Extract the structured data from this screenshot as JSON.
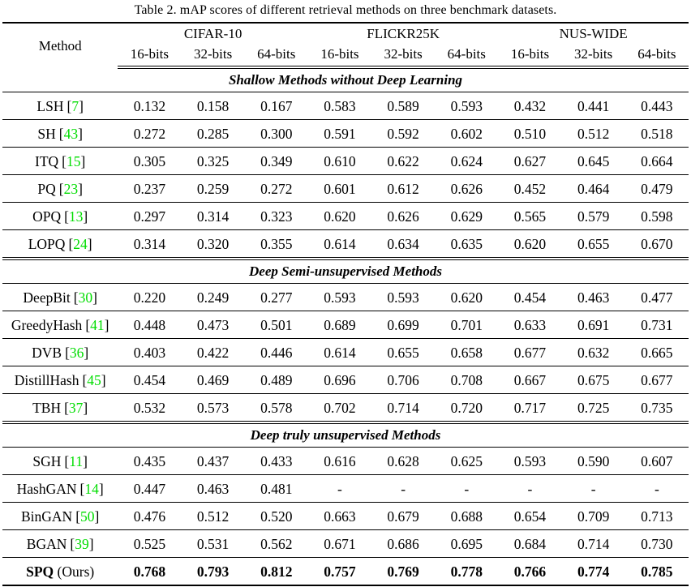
{
  "title": "Table 2. mAP scores of different retrieval methods on three benchmark datasets.",
  "colors": {
    "citation_green": "#00dd00",
    "text": "#000000",
    "background": "#ffffff"
  },
  "table": {
    "method_header": "Method",
    "datasets": [
      "CIFAR-10",
      "FLICKR25K",
      "NUS-WIDE"
    ],
    "bit_labels": [
      "16-bits",
      "32-bits",
      "64-bits"
    ],
    "citation_open": "[",
    "citation_close": "]",
    "sections": [
      {
        "label": "Shallow Methods without Deep Learning",
        "rows": [
          {
            "method": "LSH",
            "citation": "7",
            "values": [
              "0.132",
              "0.158",
              "0.167",
              "0.583",
              "0.589",
              "0.593",
              "0.432",
              "0.441",
              "0.443"
            ]
          },
          {
            "method": "SH",
            "citation": "43",
            "values": [
              "0.272",
              "0.285",
              "0.300",
              "0.591",
              "0.592",
              "0.602",
              "0.510",
              "0.512",
              "0.518"
            ]
          },
          {
            "method": "ITQ",
            "citation": "15",
            "values": [
              "0.305",
              "0.325",
              "0.349",
              "0.610",
              "0.622",
              "0.624",
              "0.627",
              "0.645",
              "0.664"
            ]
          },
          {
            "method": "PQ",
            "citation": "23",
            "values": [
              "0.237",
              "0.259",
              "0.272",
              "0.601",
              "0.612",
              "0.626",
              "0.452",
              "0.464",
              "0.479"
            ]
          },
          {
            "method": "OPQ",
            "citation": "13",
            "values": [
              "0.297",
              "0.314",
              "0.323",
              "0.620",
              "0.626",
              "0.629",
              "0.565",
              "0.579",
              "0.598"
            ]
          },
          {
            "method": "LOPQ",
            "citation": "24",
            "values": [
              "0.314",
              "0.320",
              "0.355",
              "0.614",
              "0.634",
              "0.635",
              "0.620",
              "0.655",
              "0.670"
            ]
          }
        ]
      },
      {
        "label": "Deep Semi-unsupervised Methods",
        "rows": [
          {
            "method": "DeepBit",
            "citation": "30",
            "values": [
              "0.220",
              "0.249",
              "0.277",
              "0.593",
              "0.593",
              "0.620",
              "0.454",
              "0.463",
              "0.477"
            ]
          },
          {
            "method": "GreedyHash",
            "citation": "41",
            "values": [
              "0.448",
              "0.473",
              "0.501",
              "0.689",
              "0.699",
              "0.701",
              "0.633",
              "0.691",
              "0.731"
            ]
          },
          {
            "method": "DVB",
            "citation": "36",
            "values": [
              "0.403",
              "0.422",
              "0.446",
              "0.614",
              "0.655",
              "0.658",
              "0.677",
              "0.632",
              "0.665"
            ]
          },
          {
            "method": "DistillHash",
            "citation": "45",
            "values": [
              "0.454",
              "0.469",
              "0.489",
              "0.696",
              "0.706",
              "0.708",
              "0.667",
              "0.675",
              "0.677"
            ]
          },
          {
            "method": "TBH",
            "citation": "37",
            "values": [
              "0.532",
              "0.573",
              "0.578",
              "0.702",
              "0.714",
              "0.720",
              "0.717",
              "0.725",
              "0.735"
            ]
          }
        ]
      },
      {
        "label": "Deep truly unsupervised Methods",
        "rows": [
          {
            "method": "SGH",
            "citation": "11",
            "values": [
              "0.435",
              "0.437",
              "0.433",
              "0.616",
              "0.628",
              "0.625",
              "0.593",
              "0.590",
              "0.607"
            ]
          },
          {
            "method": "HashGAN",
            "citation": "14",
            "values": [
              "0.447",
              "0.463",
              "0.481",
              "-",
              "-",
              "-",
              "-",
              "-",
              "-"
            ]
          },
          {
            "method": "BinGAN",
            "citation": "50",
            "values": [
              "0.476",
              "0.512",
              "0.520",
              "0.663",
              "0.679",
              "0.688",
              "0.654",
              "0.709",
              "0.713"
            ]
          },
          {
            "method": "BGAN",
            "citation": "39",
            "values": [
              "0.525",
              "0.531",
              "0.562",
              "0.671",
              "0.686",
              "0.695",
              "0.684",
              "0.714",
              "0.730"
            ]
          },
          {
            "method": "SPQ",
            "suffix": " (Ours)",
            "bold": true,
            "values": [
              "0.768",
              "0.793",
              "0.812",
              "0.757",
              "0.769",
              "0.778",
              "0.766",
              "0.774",
              "0.785"
            ]
          }
        ]
      }
    ]
  }
}
